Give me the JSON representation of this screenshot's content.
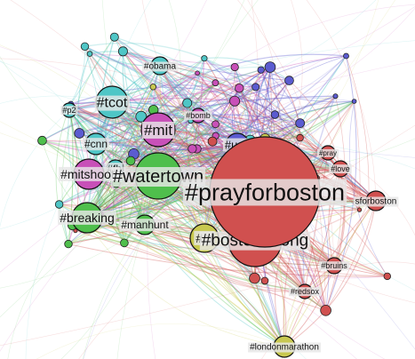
{
  "graph": {
    "nodes": [
      {
        "id": "prayforboston",
        "label": "#prayforboston",
        "size": "xl",
        "color": "#d0504f"
      },
      {
        "id": "bostonstrong",
        "label": "#bostonstrong",
        "size": "l",
        "color": "#d0504f"
      },
      {
        "id": "watertown",
        "label": "#watertown",
        "size": "l",
        "color": "#4fbf4c"
      },
      {
        "id": "mit",
        "label": "#mit",
        "size": "m",
        "color": "#c850b8"
      },
      {
        "id": "tcot",
        "label": "#tcot",
        "size": "m",
        "color": "#4fc6c6"
      },
      {
        "id": "breaking",
        "label": "#breaking",
        "size": "m",
        "color": "#4fbf4c"
      },
      {
        "id": "mitshooting",
        "label": "#mitshooti",
        "size": "m",
        "color": "#c850b8"
      },
      {
        "id": "fbi",
        "label": "#fbi",
        "size": "s",
        "color": "#4fc6c6"
      },
      {
        "id": "manhunt",
        "label": "#manhunt",
        "size": "s",
        "color": "#4fbf4c"
      },
      {
        "id": "usa",
        "label": "#usa",
        "size": "s",
        "color": "#5b5bd0"
      },
      {
        "id": "cnn",
        "label": "#cnn",
        "size": "s",
        "color": "#4fc6c6"
      },
      {
        "id": "m",
        "label": "#m",
        "size": "s",
        "color": "#c8c850"
      },
      {
        "id": "obama",
        "label": "#obama",
        "size": "xs",
        "color": "#4fc6c6"
      },
      {
        "id": "p2",
        "label": "#p2",
        "size": "xs",
        "color": "#4fc6c6"
      },
      {
        "id": "bomb",
        "label": "#bomb",
        "size": "xs",
        "color": "#c850b8"
      },
      {
        "id": "pray",
        "label": "#pray",
        "size": "xs",
        "color": "#d0504f"
      },
      {
        "id": "love",
        "label": "#love",
        "size": "xs",
        "color": "#d0504f"
      },
      {
        "id": "forboston",
        "label": "sforboston",
        "size": "xs",
        "color": "#d0504f"
      },
      {
        "id": "bruins",
        "label": "#bruins",
        "size": "xs",
        "color": "#d0504f"
      },
      {
        "id": "redsox",
        "label": "#redsox",
        "size": "xs",
        "color": "#d0504f"
      },
      {
        "id": "londonmarathon",
        "label": "#londonmarathon",
        "size": "s",
        "color": "#c8c850"
      }
    ],
    "colors": {
      "red": "#d0504f",
      "green": "#4fbf4c",
      "cyan": "#4fc6c6",
      "magenta": "#c850b8",
      "blue": "#5b5bd0",
      "yellow": "#c8c850"
    }
  }
}
